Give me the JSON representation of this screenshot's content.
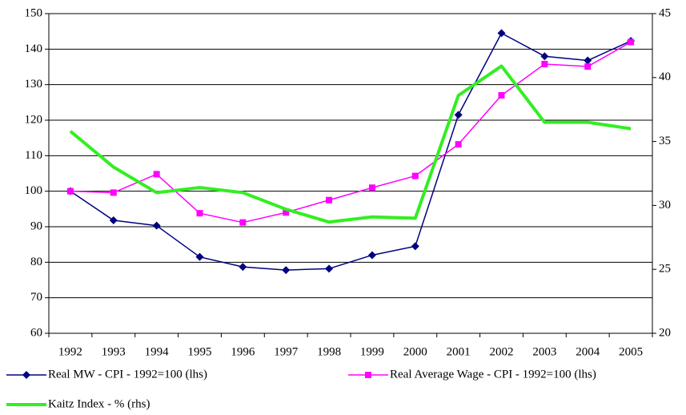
{
  "chart_data": {
    "type": "line",
    "categories": [
      "1992",
      "1993",
      "1994",
      "1995",
      "1996",
      "1997",
      "1998",
      "1999",
      "2000",
      "2001",
      "2002",
      "2003",
      "2004",
      "2005"
    ],
    "series": [
      {
        "name": "Real MW - CPI - 1992=100 (lhs)",
        "color": "#000080",
        "marker": "diamond",
        "width": 1.5,
        "values": [
          100,
          91.8,
          90.3,
          81.5,
          78.7,
          77.8,
          78.2,
          82,
          84.5,
          121.5,
          144.5,
          138,
          136.8,
          142.3
        ]
      },
      {
        "name": "Real Average Wage -  CPI - 1992=100 (lhs)",
        "color": "#ff00ff",
        "marker": "square",
        "width": 1.5,
        "values": [
          100,
          99.6,
          104.8,
          93.8,
          91.2,
          94,
          97.5,
          101,
          104.3,
          113.2,
          127,
          135.8,
          135.1,
          142
        ]
      },
      {
        "name": "Kaitz Index - % (rhs)",
        "color": "#33ee22",
        "marker": "none",
        "width": 4,
        "axis": "y2",
        "values": [
          35.8,
          33.0,
          31.0,
          31.4,
          31.0,
          29.7,
          28.7,
          29.1,
          29.0,
          38.6,
          40.9,
          36.5,
          36.5,
          36.0
        ]
      }
    ],
    "ylim": [
      60,
      150
    ],
    "yticks": [
      60,
      70,
      80,
      90,
      100,
      110,
      120,
      130,
      140,
      150
    ],
    "y2lim": [
      20,
      45
    ],
    "y2ticks": [
      20,
      25,
      30,
      35,
      40,
      45
    ],
    "grid": true,
    "legend": "bottom"
  }
}
